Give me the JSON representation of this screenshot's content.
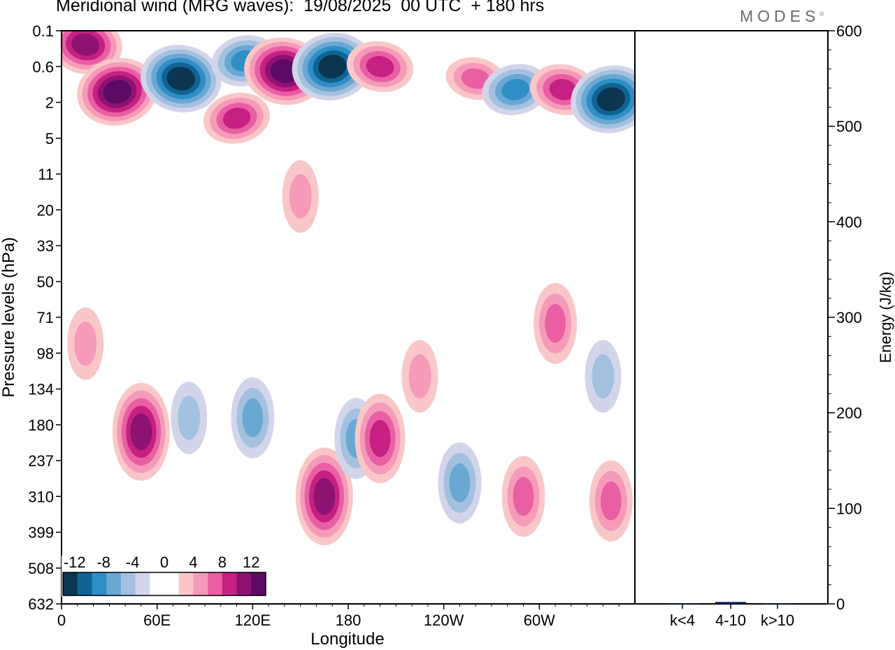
{
  "title": "Meridional wind (MRG waves):  19/08/2025  00 UTC  + 180 hrs",
  "brand": "MODES",
  "brand_mark": "©",
  "colors": {
    "neg": [
      "#0b3550",
      "#0f6494",
      "#2e8fc6",
      "#6aa7d3",
      "#a3c1df",
      "#d2d5e9"
    ],
    "pos": [
      "#f9c7c7",
      "#f69ab9",
      "#e95fa3",
      "#c52082",
      "#8d1272",
      "#5c0a63"
    ],
    "neutral": "#ffffff"
  },
  "chart_data": [
    {
      "type": "heatmap",
      "title": "Meridional wind (MRG waves)",
      "xlabel": "Longitude",
      "ylabel": "Pressure levels (hPa)",
      "x_ticks": [
        "0",
        "60E",
        "120E",
        "180",
        "120W",
        "60W"
      ],
      "x_tick_values": [
        0,
        60,
        120,
        180,
        240,
        300
      ],
      "xlim": [
        0,
        360
      ],
      "y_ticks": [
        "0.1",
        "0.6",
        "2",
        "5",
        "11",
        "20",
        "33",
        "50",
        "71",
        "98",
        "134",
        "180",
        "237",
        "310",
        "399",
        "508",
        "632"
      ],
      "colorbar": {
        "labels": [
          "-12",
          "-8",
          "-4",
          "0",
          "4",
          "8",
          "12"
        ],
        "levels": [
          -12,
          -10,
          -8,
          -6,
          -4,
          -2,
          0,
          2,
          4,
          6,
          8,
          10,
          12
        ]
      },
      "features": [
        {
          "lon": 15,
          "level": 0.2,
          "value": 10
        },
        {
          "lon": 35,
          "level": 1.4,
          "value": 13
        },
        {
          "lon": 75,
          "level": 0.9,
          "value": -13
        },
        {
          "lon": 115,
          "level": 0.45,
          "value": -7
        },
        {
          "lon": 140,
          "level": 0.7,
          "value": 14
        },
        {
          "lon": 170,
          "level": 0.6,
          "value": -14
        },
        {
          "lon": 200,
          "level": 0.6,
          "value": 8
        },
        {
          "lon": 110,
          "level": 3,
          "value": 8
        },
        {
          "lon": 260,
          "level": 0.9,
          "value": 6
        },
        {
          "lon": 285,
          "level": 1.3,
          "value": -7
        },
        {
          "lon": 315,
          "level": 1.3,
          "value": 7
        },
        {
          "lon": 345,
          "level": 1.8,
          "value": -11
        },
        {
          "lon": 150,
          "level": 16,
          "value": 4
        },
        {
          "lon": 15,
          "level": 90,
          "value": 4
        },
        {
          "lon": 50,
          "level": 190,
          "value": 9
        },
        {
          "lon": 80,
          "level": 170,
          "value": -3
        },
        {
          "lon": 120,
          "level": 170,
          "value": -6
        },
        {
          "lon": 165,
          "level": 310,
          "value": 9
        },
        {
          "lon": 185,
          "level": 200,
          "value": -6
        },
        {
          "lon": 200,
          "level": 200,
          "value": 8
        },
        {
          "lon": 225,
          "level": 120,
          "value": 4
        },
        {
          "lon": 250,
          "level": 280,
          "value": -5
        },
        {
          "lon": 290,
          "level": 310,
          "value": 6
        },
        {
          "lon": 310,
          "level": 75,
          "value": 5
        },
        {
          "lon": 340,
          "level": 120,
          "value": -3
        },
        {
          "lon": 345,
          "level": 320,
          "value": 5
        }
      ]
    },
    {
      "type": "bar",
      "ylabel": "Energy (J/kg)",
      "ylim": [
        0,
        600
      ],
      "y_ticks": [
        "0",
        "100",
        "200",
        "300",
        "400",
        "500",
        "600"
      ],
      "categories": [
        "k<4",
        "4-10",
        "k>10"
      ],
      "values": [
        0.5,
        2,
        0.2
      ]
    }
  ]
}
